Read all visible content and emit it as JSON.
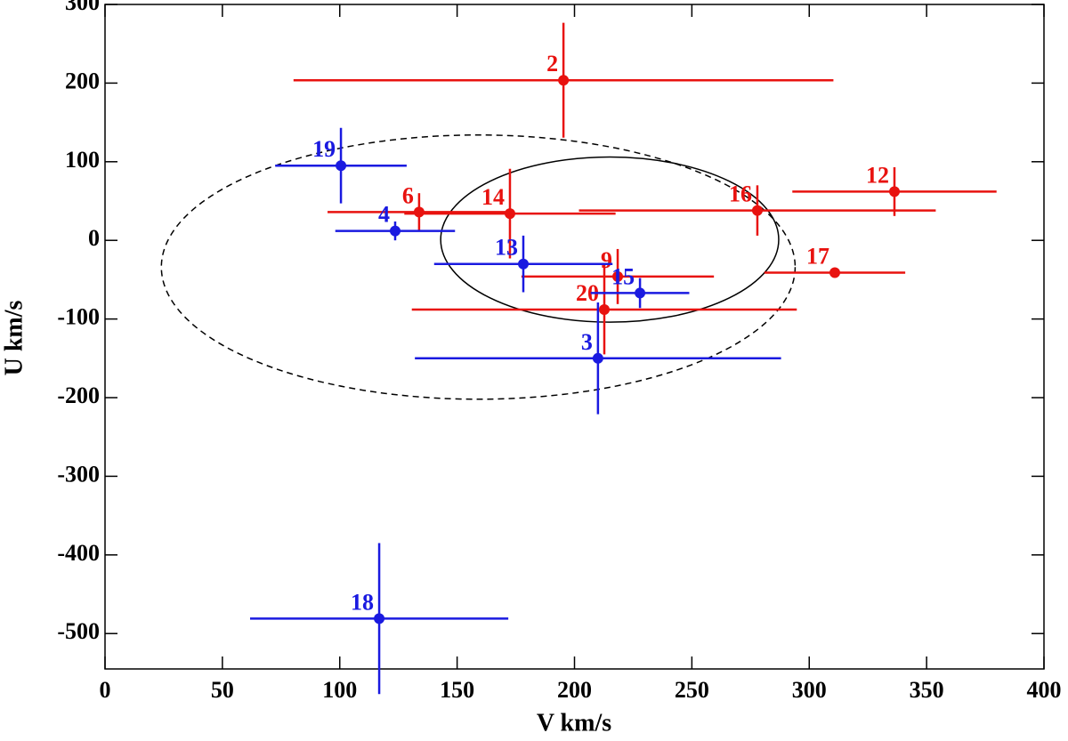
{
  "chart_data": {
    "type": "scatter",
    "x_label": "V km/s",
    "y_label": "U km/s",
    "xlim": [
      0,
      400
    ],
    "ylim": [
      -545,
      300
    ],
    "xticks": [
      0,
      50,
      100,
      150,
      200,
      250,
      300,
      350,
      400
    ],
    "yticks": [
      -500,
      -400,
      -300,
      -200,
      -100,
      0,
      100,
      200,
      300
    ],
    "series": [
      {
        "color": "#e8120f",
        "labels": [
          "2",
          "6",
          "14",
          "16",
          "12",
          "17",
          "9",
          "20"
        ],
        "x": [
          195.3,
          133.8,
          172.5,
          277.9,
          336.3,
          310.9,
          218.4,
          212.7
        ],
        "values": [
          203.6,
          36,
          34,
          38,
          62,
          -41,
          -46,
          -88
        ],
        "xerr": [
          115,
          39,
          45,
          76,
          43.5,
          30,
          41,
          82
        ],
        "yerr": [
          73,
          24,
          57,
          32,
          31,
          0,
          35,
          57
        ]
      },
      {
        "color": "#1a1ae0",
        "labels": [
          "19",
          "4",
          "13",
          "15",
          "3",
          "18"
        ],
        "x": [
          100.5,
          123.6,
          178.2,
          227.9,
          210,
          116.8
        ],
        "values": [
          95,
          12,
          -30,
          -67,
          -150,
          -481
        ],
        "xerr": [
          28,
          25.5,
          38,
          21,
          78,
          55
        ],
        "yerr": [
          48,
          12,
          36,
          19,
          71,
          96
        ]
      }
    ],
    "ellipses": [
      {
        "cx": 215,
        "cy": 1,
        "rx": 72,
        "ry": 105,
        "style": "solid"
      },
      {
        "cx": 159,
        "cy": -34,
        "rx": 135,
        "ry": 168,
        "style": "dashed"
      }
    ]
  }
}
